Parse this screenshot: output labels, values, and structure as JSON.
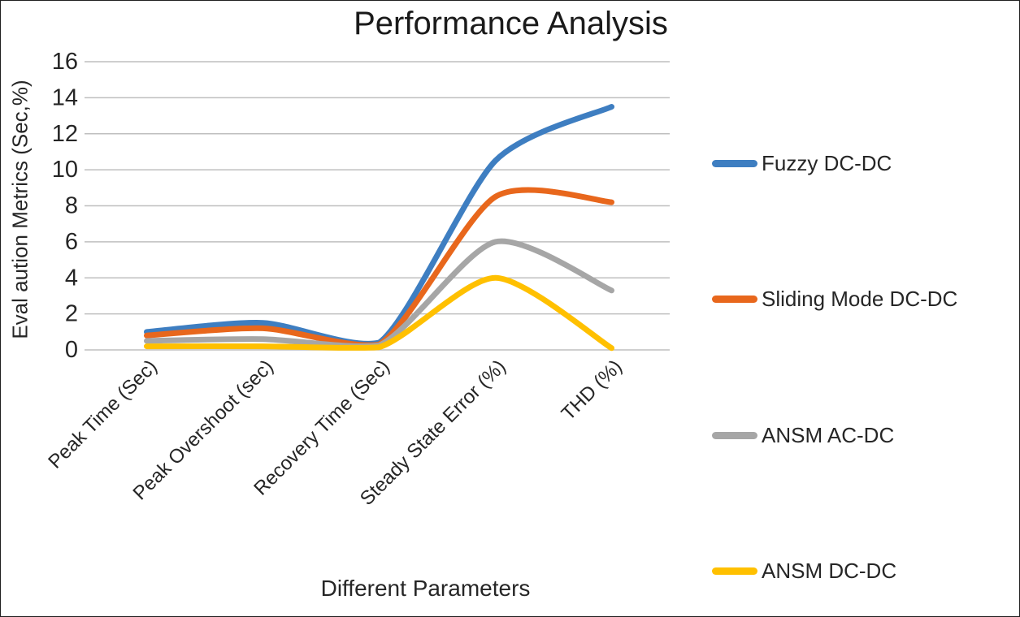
{
  "figure": {
    "title": "Performance Analysis",
    "x_axis_title": "Different Parameters",
    "y_axis_title": "Eval aution Metrics (Sec,%)"
  },
  "chart_data": {
    "type": "line",
    "title": "Performance Analysis",
    "xlabel": "Different Parameters",
    "ylabel": "Eval aution Metrics (Sec,%)",
    "categories": [
      "Peak Time (Sec)",
      "Peak Overshoot (sec)",
      "Recovery Time (Sec)",
      "Steady State Error (%)",
      "THD (%)"
    ],
    "y_ticks": [
      0,
      2,
      4,
      6,
      8,
      10,
      12,
      14,
      16
    ],
    "ylim": [
      0,
      16
    ],
    "grid": true,
    "smooth": true,
    "legend_position": "right",
    "grid_color": "#bfbfbf",
    "text_color": "#262626",
    "series": [
      {
        "name": "Fuzzy DC-DC",
        "color": "#3e7ec1",
        "values": [
          1.0,
          1.5,
          0.4,
          10.5,
          13.5
        ]
      },
      {
        "name": "Sliding Mode DC-DC",
        "color": "#e8671c",
        "values": [
          0.8,
          1.2,
          0.3,
          8.5,
          8.2
        ]
      },
      {
        "name": "ANSM AC-DC",
        "color": "#a6a6a6",
        "values": [
          0.5,
          0.6,
          0.25,
          6.0,
          3.3
        ]
      },
      {
        "name": "ANSM DC-DC",
        "color": "#ffc000",
        "values": [
          0.2,
          0.2,
          0.15,
          4.0,
          0.1
        ]
      }
    ]
  }
}
